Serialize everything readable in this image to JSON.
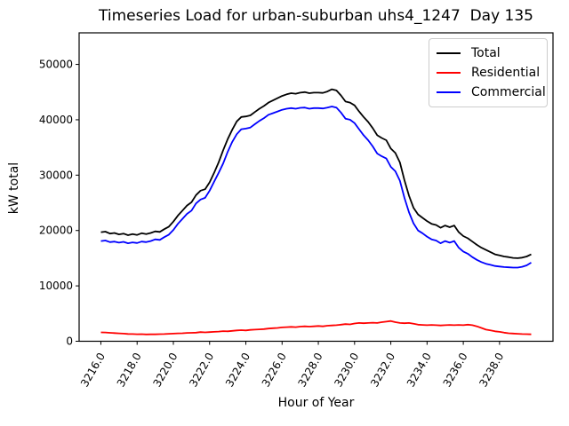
{
  "figure": {
    "title": "Timeseries Load for urban-suburban uhs4_1247  Day 135",
    "xlabel": "Hour of Year",
    "ylabel": "kW total"
  },
  "chart_data": {
    "type": "line",
    "title": "Timeseries Load for urban-suburban uhs4_1247  Day 135",
    "xlabel": "Hour of Year",
    "ylabel": "kW total",
    "grid": false,
    "legend_position": "upper right",
    "xlim": [
      3214.8,
      3240.95
    ],
    "ylim": [
      0,
      55700
    ],
    "x_tick_labels": [
      "3216.0",
      "3218.0",
      "3220.0",
      "3222.0",
      "3224.0",
      "3226.0",
      "3228.0",
      "3230.0",
      "3232.0",
      "3234.0",
      "3236.0",
      "3238.0"
    ],
    "y_tick_labels": [
      "0",
      "10000",
      "20000",
      "30000",
      "40000",
      "50000"
    ],
    "x_start": 3216.0,
    "x_step": 0.25,
    "series": [
      {
        "name": "Total",
        "color": "#000000",
        "values": [
          19700,
          19800,
          19450,
          19550,
          19300,
          19450,
          19150,
          19350,
          19200,
          19500,
          19350,
          19550,
          19850,
          19750,
          20250,
          20700,
          21600,
          22700,
          23600,
          24500,
          25100,
          26400,
          27200,
          27450,
          28700,
          30400,
          32300,
          34500,
          36500,
          38200,
          39700,
          40500,
          40600,
          40800,
          41400,
          42000,
          42500,
          43100,
          43500,
          43900,
          44300,
          44600,
          44800,
          44700,
          44900,
          45000,
          44800,
          44900,
          44900,
          44850,
          45100,
          45500,
          45300,
          44400,
          43300,
          43100,
          42600,
          41500,
          40500,
          39600,
          38500,
          37200,
          36700,
          36300,
          34800,
          34000,
          32300,
          29100,
          26300,
          24100,
          22900,
          22300,
          21700,
          21200,
          21000,
          20500,
          20900,
          20600,
          20900,
          19700,
          19000,
          18600,
          18000,
          17400,
          16900,
          16500,
          16100,
          15700,
          15500,
          15300,
          15200,
          15050,
          15000,
          15100,
          15300,
          15700
        ]
      },
      {
        "name": "Residential",
        "color": "#ff0000",
        "values": [
          1600,
          1580,
          1520,
          1480,
          1420,
          1380,
          1320,
          1300,
          1260,
          1280,
          1230,
          1250,
          1250,
          1280,
          1300,
          1340,
          1380,
          1420,
          1450,
          1500,
          1520,
          1550,
          1650,
          1600,
          1650,
          1700,
          1750,
          1820,
          1800,
          1880,
          1950,
          2000,
          1950,
          2050,
          2100,
          2150,
          2200,
          2300,
          2350,
          2400,
          2500,
          2550,
          2600,
          2550,
          2650,
          2700,
          2650,
          2700,
          2750,
          2700,
          2800,
          2850,
          2900,
          3000,
          3100,
          3050,
          3200,
          3300,
          3250,
          3300,
          3350,
          3300,
          3450,
          3550,
          3650,
          3450,
          3300,
          3250,
          3300,
          3150,
          3000,
          2950,
          2900,
          2950,
          2900,
          2850,
          2900,
          2950,
          2900,
          2950,
          2900,
          3000,
          2900,
          2700,
          2400,
          2100,
          1950,
          1800,
          1700,
          1550,
          1450,
          1400,
          1350,
          1300,
          1280,
          1250
        ]
      },
      {
        "name": "Commercial",
        "color": "#0000ff",
        "values": [
          18100,
          18200,
          17900,
          18000,
          17800,
          17950,
          17700,
          17850,
          17750,
          18000,
          17900,
          18100,
          18400,
          18300,
          18800,
          19250,
          20100,
          21200,
          22100,
          23000,
          23600,
          24900,
          25600,
          25900,
          27200,
          28800,
          30400,
          32100,
          34200,
          36000,
          37400,
          38300,
          38400,
          38600,
          39200,
          39800,
          40300,
          40900,
          41200,
          41500,
          41800,
          42000,
          42100,
          42000,
          42150,
          42200,
          42000,
          42100,
          42100,
          42050,
          42200,
          42400,
          42200,
          41300,
          40200,
          40000,
          39400,
          38300,
          37200,
          36300,
          35200,
          33900,
          33400,
          33000,
          31500,
          30700,
          29000,
          25900,
          23300,
          21300,
          20000,
          19500,
          18900,
          18400,
          18200,
          17700,
          18100,
          17800,
          18100,
          16900,
          16200,
          15800,
          15200,
          14700,
          14300,
          14000,
          13800,
          13600,
          13500,
          13400,
          13350,
          13300,
          13300,
          13450,
          13700,
          14200
        ]
      }
    ]
  }
}
